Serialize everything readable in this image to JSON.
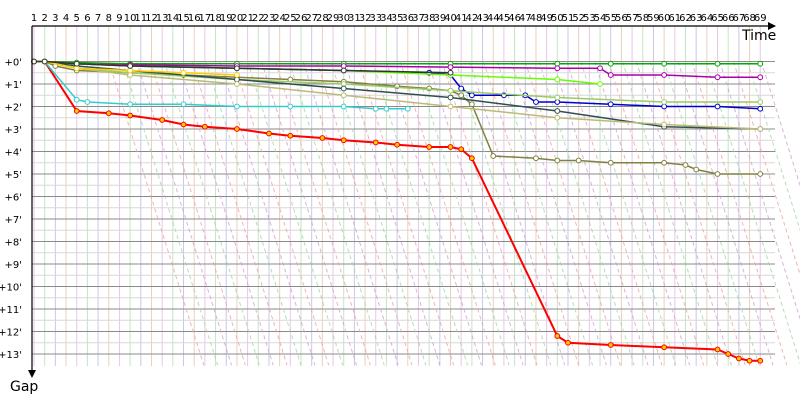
{
  "chart_data": {
    "type": "line",
    "title": "",
    "xlabel": "Time",
    "ylabel": "Gap",
    "x_ticks": [
      "1",
      "2",
      "3",
      "4",
      "5",
      "6",
      "7",
      "8",
      "9",
      "10",
      "11",
      "12",
      "13",
      "14",
      "15",
      "16",
      "17",
      "18",
      "19",
      "20",
      "21",
      "22",
      "23",
      "24",
      "25",
      "26",
      "27",
      "28",
      "29",
      "30",
      "31",
      "32",
      "33",
      "34",
      "35",
      "36",
      "37",
      "38",
      "39",
      "40",
      "41",
      "42",
      "43",
      "44",
      "45",
      "46",
      "47",
      "48",
      "49",
      "50",
      "51",
      "52",
      "53",
      "54",
      "55",
      "56",
      "57",
      "58",
      "59",
      "60",
      "61",
      "62",
      "63",
      "64",
      "65",
      "66",
      "67",
      "68",
      "69"
    ],
    "y_ticks": [
      "+0'",
      "+1'",
      "+2'",
      "+3'",
      "+4'",
      "+5'",
      "+6'",
      "+7'",
      "+8'",
      "+9'",
      "+10'",
      "+11'",
      "+12'",
      "+13'"
    ],
    "xlim": [
      1,
      69
    ],
    "ylim_minutes": [
      0,
      13.5
    ],
    "grid": true,
    "series": [
      {
        "color": "#ff0000",
        "x": [
          1,
          2,
          5,
          8,
          10,
          13,
          15,
          17,
          20,
          23,
          25,
          28,
          30,
          33,
          35,
          38,
          40,
          41,
          42,
          50,
          51,
          55,
          60,
          65,
          66,
          67,
          68,
          69
        ],
        "y": [
          0,
          0,
          2.2,
          2.3,
          2.4,
          2.6,
          2.8,
          2.9,
          3,
          3.2,
          3.3,
          3.4,
          3.5,
          3.6,
          3.7,
          3.8,
          3.8,
          3.9,
          4.3,
          12.2,
          12.5,
          12.6,
          12.7,
          12.8,
          13,
          13.2,
          13.3,
          13.3
        ]
      },
      {
        "color": "#33cccc",
        "x": [
          1,
          2,
          5,
          6,
          10,
          15,
          20,
          25,
          30,
          33,
          34,
          36
        ],
        "y": [
          0,
          0,
          1.7,
          1.8,
          1.9,
          1.9,
          2,
          2,
          2,
          2.1,
          2.1,
          2.1
        ]
      },
      {
        "color": "#808040",
        "x": [
          1,
          2,
          3,
          5,
          10,
          15,
          20,
          25,
          30,
          35,
          38,
          40,
          41,
          42,
          44,
          48,
          50,
          52,
          55,
          60,
          62,
          63,
          65,
          69
        ],
        "y": [
          0,
          0,
          0.2,
          0.4,
          0.5,
          0.6,
          0.7,
          0.8,
          0.9,
          1.1,
          1.2,
          1.3,
          1.5,
          1.9,
          4.2,
          4.3,
          4.4,
          4.4,
          4.5,
          4.5,
          4.6,
          4.8,
          5,
          5
        ]
      },
      {
        "color": "#0000cc",
        "x": [
          1,
          2,
          5,
          10,
          20,
          30,
          38,
          40,
          41,
          42,
          45,
          47,
          48,
          50,
          55,
          60,
          65,
          69
        ],
        "y": [
          0,
          0,
          0.1,
          0.2,
          0.3,
          0.4,
          0.5,
          0.6,
          1.2,
          1.5,
          1.5,
          1.5,
          1.8,
          1.8,
          1.9,
          2,
          2,
          2.1
        ]
      },
      {
        "color": "#00aa00",
        "x": [
          1,
          2,
          5,
          10,
          20,
          30,
          40,
          50,
          55,
          60,
          65,
          69
        ],
        "y": [
          0,
          0,
          0.05,
          0.1,
          0.1,
          0.1,
          0.1,
          0.1,
          0.1,
          0.1,
          0.1,
          0.1
        ]
      },
      {
        "color": "#aa00aa",
        "x": [
          1,
          2,
          5,
          10,
          20,
          30,
          40,
          50,
          54,
          55,
          60,
          65,
          69
        ],
        "y": [
          0,
          0,
          0.1,
          0.15,
          0.2,
          0.2,
          0.25,
          0.3,
          0.3,
          0.6,
          0.6,
          0.7,
          0.7
        ]
      },
      {
        "color": "#66ff00",
        "x": [
          1,
          2,
          5,
          10,
          20,
          30,
          40,
          50,
          54
        ],
        "y": [
          0,
          0,
          0.1,
          0.2,
          0.3,
          0.4,
          0.6,
          0.8,
          1
        ]
      },
      {
        "color": "#99cc66",
        "x": [
          1,
          2,
          5,
          10,
          20,
          30,
          40,
          50,
          60,
          69
        ],
        "y": [
          0,
          0,
          0.3,
          0.5,
          0.8,
          1,
          1.3,
          1.6,
          1.8,
          1.8
        ]
      },
      {
        "color": "#2f4f4f",
        "x": [
          1,
          2,
          5,
          10,
          20,
          30,
          40,
          50,
          60,
          69
        ],
        "y": [
          0,
          0,
          0.2,
          0.4,
          0.8,
          1.2,
          1.6,
          2.2,
          2.9,
          3
        ]
      },
      {
        "color": "#bbbb77",
        "x": [
          1,
          2,
          5,
          10,
          20,
          30,
          40,
          50,
          60,
          69
        ],
        "y": [
          0,
          0,
          0.3,
          0.6,
          1,
          1.5,
          2,
          2.5,
          2.8,
          3
        ]
      },
      {
        "color": "#ffcc00",
        "x": [
          1,
          2,
          5,
          10,
          15,
          20
        ],
        "y": [
          0,
          0,
          0.3,
          0.4,
          0.5,
          0.6
        ]
      },
      {
        "color": "#333333",
        "x": [
          1,
          2,
          5,
          10,
          20,
          30,
          40
        ],
        "y": [
          0,
          0,
          0.1,
          0.2,
          0.3,
          0.4,
          0.5
        ]
      }
    ]
  }
}
